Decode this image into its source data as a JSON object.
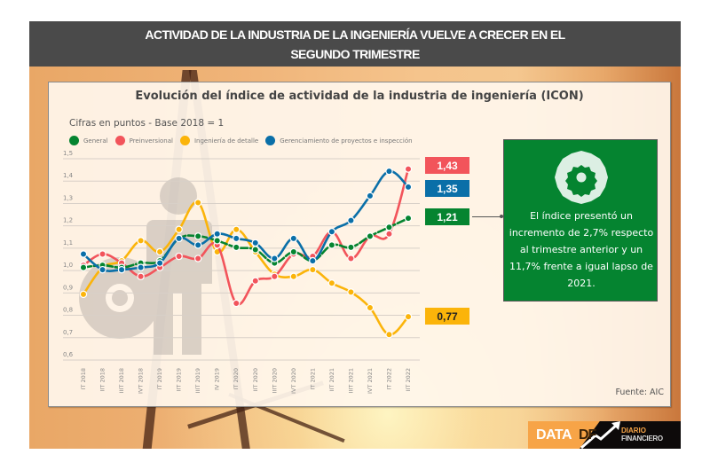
{
  "header": {
    "line1": "ACTIVIDAD DE LA INDUSTRIA DE LA INGENIERÍA VUELVE A CRECER EN EL",
    "line2": "SEGUNDO TRIMESTRE"
  },
  "colors": {
    "general": "#058430",
    "preinversional": "#f2545b",
    "detalle": "#fbb40a",
    "gerenciamiento": "#0a6fa8",
    "header_bg": "#4a4a4a"
  },
  "chart_data": {
    "type": "line",
    "title": "Evolución del índice de actividad de la industria de ingeniería (ICON)",
    "subtitle": "Cifras en puntos - Base 2018 = 1",
    "xlabel": "",
    "ylabel": "",
    "ylim": [
      0.6,
      1.5
    ],
    "yticks": [
      "1,5",
      "1,4",
      "1,3",
      "1,2",
      "1,1",
      "1,0",
      "0,9",
      "0,8",
      "0,7",
      "0,6"
    ],
    "ytick_values": [
      1.5,
      1.4,
      1.3,
      1.2,
      1.1,
      1.0,
      0.9,
      0.8,
      0.7,
      0.6
    ],
    "grid": true,
    "legend_position": "top-left",
    "categories": [
      "IT 2018",
      "IIT 2018",
      "IIIT 2018",
      "IVT 2018",
      "IT 2019",
      "IIT 2019",
      "IIIT 2019",
      "IV 2019",
      "IT 2020",
      "IIT 2020",
      "IIIT 2020",
      "IVT 2020",
      "IT 2021",
      "IIT 2021",
      "IIIT 2021",
      "IVT 2021",
      "IT 2022",
      "IIT 2022"
    ],
    "series": [
      {
        "name": "General",
        "key": "general",
        "dashed": true,
        "values": [
          0.99,
          1.0,
          0.99,
          1.01,
          1.02,
          1.12,
          1.13,
          1.11,
          1.08,
          1.07,
          1.01,
          1.06,
          1.02,
          1.09,
          1.08,
          1.13,
          1.17,
          1.21
        ]
      },
      {
        "name": "Preinversional",
        "key": "preinversional",
        "dashed": false,
        "values": [
          1.0,
          1.05,
          1.01,
          0.95,
          0.99,
          1.04,
          1.03,
          1.09,
          0.83,
          0.93,
          0.95,
          1.05,
          1.04,
          1.15,
          1.03,
          1.13,
          1.14,
          1.43
        ]
      },
      {
        "name": "Ingeniería de detalle",
        "key": "detalle",
        "dashed": false,
        "values": [
          0.87,
          0.99,
          1.02,
          1.11,
          1.06,
          1.16,
          1.28,
          1.06,
          1.16,
          1.06,
          0.96,
          0.95,
          0.98,
          0.92,
          0.88,
          0.81,
          0.69,
          0.77
        ]
      },
      {
        "name": "Gerenciamiento de proyectos e inspección",
        "key": "gerenciamiento",
        "dashed": false,
        "values": [
          1.05,
          0.98,
          0.98,
          0.99,
          1.01,
          1.12,
          1.09,
          1.14,
          1.12,
          1.1,
          1.03,
          1.12,
          1.02,
          1.15,
          1.2,
          1.31,
          1.42,
          1.35
        ]
      }
    ],
    "end_labels": [
      {
        "series": "preinversional",
        "text": "1,43"
      },
      {
        "series": "gerenciamiento",
        "text": "1,35"
      },
      {
        "series": "general",
        "text": "1,21"
      },
      {
        "series": "detalle",
        "text": "0,77"
      }
    ]
  },
  "infobox": {
    "icon": "gear-icon",
    "text": "El índice presentó un incremento de 2,7% respecto al trimestre anterior y un 11,7% frente a igual lapso de 2021."
  },
  "source": "Fuente: AIC",
  "logo": {
    "data": "DATA",
    "df": "DF",
    "diario": "DIARIO",
    "financiero": "FINANCIERO"
  }
}
